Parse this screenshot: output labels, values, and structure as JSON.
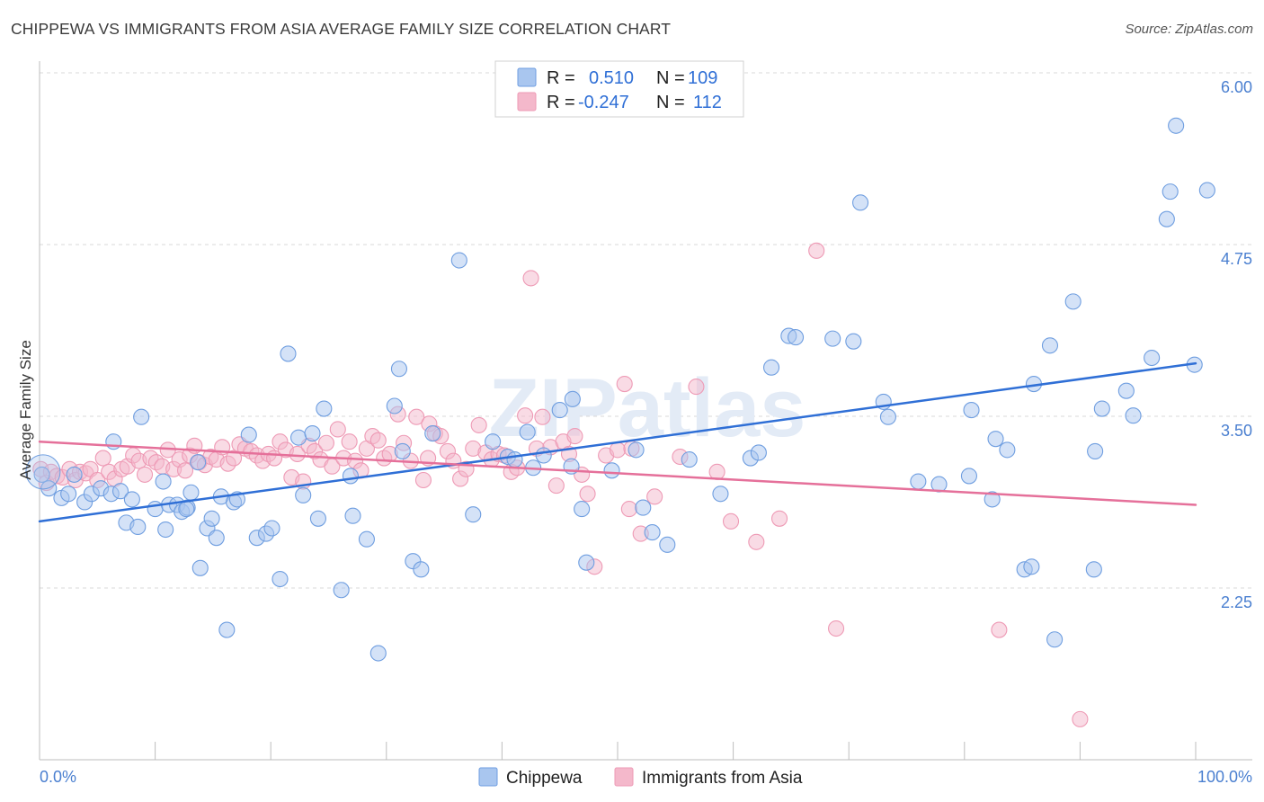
{
  "header": {
    "title": "CHIPPEWA VS IMMIGRANTS FROM ASIA AVERAGE FAMILY SIZE CORRELATION CHART",
    "source": "Source: ZipAtlas.com"
  },
  "watermark": "ZIPatlas",
  "legend_top": {
    "rows": [
      {
        "r_label": "R =",
        "r_value": "0.510",
        "n_label": "N =",
        "n_value": "109"
      },
      {
        "r_label": "R =",
        "r_value": "-0.247",
        "n_label": "N =",
        "n_value": "112"
      }
    ]
  },
  "legend_bottom": {
    "items": [
      "Chippewa",
      "Immigrants from Asia"
    ]
  },
  "colors": {
    "blue_fill": "#a9c6ef",
    "blue_stroke": "#6f9ee0",
    "blue_line": "#2f6fd6",
    "pink_fill": "#f4b8cb",
    "pink_stroke": "#ee9ab5",
    "pink_line": "#e5709a",
    "tick_text": "#4a7fd0",
    "grid": "#d8d8d8"
  },
  "chart_data": {
    "type": "scatter",
    "title": "CHIPPEWA VS IMMIGRANTS FROM ASIA AVERAGE FAMILY SIZE CORRELATION CHART",
    "xlabel": "",
    "ylabel": "Average Family Size",
    "xlim": [
      0,
      100
    ],
    "ylim": [
      1.0,
      6.15
    ],
    "x_tick_labels": [
      "0.0%",
      "100.0%"
    ],
    "y_ticks": [
      2.25,
      3.5,
      4.75,
      6.0
    ],
    "y_tick_labels": [
      "2.25",
      "3.50",
      "4.75",
      "6.00"
    ],
    "grid": "horizontal dashed",
    "series": [
      {
        "name": "Chippewa",
        "R": 0.51,
        "N": 109,
        "trend": {
          "x": [
            0,
            100
          ],
          "y": [
            2.84,
            3.99
          ]
        },
        "points": [
          [
            0.2,
            3.18
          ],
          [
            0.8,
            3.08
          ],
          [
            1.9,
            3.01
          ],
          [
            2.5,
            3.04
          ],
          [
            3.0,
            3.18
          ],
          [
            3.9,
            2.98
          ],
          [
            4.5,
            3.04
          ],
          [
            5.3,
            3.08
          ],
          [
            6.2,
            3.04
          ],
          [
            6.4,
            3.42
          ],
          [
            7.0,
            3.06
          ],
          [
            7.5,
            2.83
          ],
          [
            8.0,
            3.0
          ],
          [
            8.5,
            2.8
          ],
          [
            8.8,
            3.6
          ],
          [
            10.0,
            2.93
          ],
          [
            10.7,
            3.13
          ],
          [
            10.9,
            2.78
          ],
          [
            11.2,
            2.96
          ],
          [
            11.9,
            2.96
          ],
          [
            12.3,
            2.91
          ],
          [
            12.8,
            2.94
          ],
          [
            12.7,
            2.93
          ],
          [
            13.1,
            3.05
          ],
          [
            13.7,
            3.27
          ],
          [
            13.9,
            2.5
          ],
          [
            14.5,
            2.79
          ],
          [
            14.9,
            2.86
          ],
          [
            15.3,
            2.72
          ],
          [
            15.7,
            3.02
          ],
          [
            16.2,
            2.05
          ],
          [
            16.8,
            2.98
          ],
          [
            17.1,
            3.0
          ],
          [
            18.1,
            3.47
          ],
          [
            18.8,
            2.72
          ],
          [
            19.6,
            2.75
          ],
          [
            20.1,
            2.79
          ],
          [
            20.8,
            2.42
          ],
          [
            21.5,
            4.06
          ],
          [
            22.4,
            3.45
          ],
          [
            22.8,
            3.03
          ],
          [
            23.6,
            3.48
          ],
          [
            24.1,
            2.86
          ],
          [
            24.6,
            3.66
          ],
          [
            26.1,
            2.34
          ],
          [
            26.9,
            3.17
          ],
          [
            27.1,
            2.88
          ],
          [
            28.3,
            2.71
          ],
          [
            29.3,
            1.88
          ],
          [
            30.7,
            3.68
          ],
          [
            31.1,
            3.95
          ],
          [
            31.4,
            3.35
          ],
          [
            32.3,
            2.55
          ],
          [
            33.0,
            2.49
          ],
          [
            34.0,
            3.48
          ],
          [
            36.3,
            4.74
          ],
          [
            37.5,
            2.89
          ],
          [
            39.2,
            3.42
          ],
          [
            40.5,
            3.31
          ],
          [
            41.1,
            3.29
          ],
          [
            42.2,
            3.49
          ],
          [
            42.7,
            3.23
          ],
          [
            43.6,
            3.32
          ],
          [
            45.0,
            3.65
          ],
          [
            46.0,
            3.24
          ],
          [
            46.1,
            3.73
          ],
          [
            46.9,
            2.93
          ],
          [
            47.3,
            2.54
          ],
          [
            49.5,
            3.21
          ],
          [
            51.6,
            3.36
          ],
          [
            52.2,
            2.94
          ],
          [
            53.0,
            2.76
          ],
          [
            54.3,
            2.67
          ],
          [
            56.2,
            3.29
          ],
          [
            58.9,
            3.04
          ],
          [
            61.5,
            3.3
          ],
          [
            62.2,
            3.34
          ],
          [
            63.3,
            3.96
          ],
          [
            68.6,
            4.17
          ],
          [
            73.0,
            3.71
          ],
          [
            73.4,
            3.6
          ],
          [
            80.4,
            3.17
          ],
          [
            80.6,
            3.65
          ],
          [
            82.7,
            3.44
          ],
          [
            82.4,
            3.0
          ],
          [
            85.2,
            2.49
          ],
          [
            85.8,
            2.51
          ],
          [
            83.7,
            3.36
          ],
          [
            86.0,
            3.84
          ],
          [
            87.4,
            4.12
          ],
          [
            89.4,
            4.44
          ],
          [
            91.3,
            3.35
          ],
          [
            91.9,
            3.66
          ],
          [
            94.0,
            3.79
          ],
          [
            94.6,
            3.61
          ],
          [
            96.2,
            4.03
          ],
          [
            97.8,
            5.24
          ],
          [
            97.5,
            5.04
          ],
          [
            98.3,
            5.72
          ],
          [
            99.9,
            3.98
          ],
          [
            101.0,
            5.25
          ],
          [
            87.8,
            1.98
          ],
          [
            91.2,
            2.49
          ],
          [
            71.0,
            5.16
          ],
          [
            70.4,
            4.15
          ],
          [
            77.8,
            3.11
          ],
          [
            64.8,
            4.19
          ],
          [
            65.4,
            4.18
          ],
          [
            76.0,
            3.13
          ]
        ]
      },
      {
        "name": "Immigrants from Asia",
        "R": -0.247,
        "N": 112,
        "trend": {
          "x": [
            0,
            100
          ],
          "y": [
            3.42,
            2.96
          ]
        },
        "points": [
          [
            0.1,
            3.22
          ],
          [
            0.6,
            3.12
          ],
          [
            1.0,
            3.2
          ],
          [
            1.5,
            3.17
          ],
          [
            2.0,
            3.16
          ],
          [
            2.6,
            3.22
          ],
          [
            3.1,
            3.14
          ],
          [
            3.5,
            3.2
          ],
          [
            4.0,
            3.19
          ],
          [
            4.4,
            3.22
          ],
          [
            5.0,
            3.14
          ],
          [
            5.5,
            3.3
          ],
          [
            6.0,
            3.2
          ],
          [
            6.5,
            3.15
          ],
          [
            7.1,
            3.22
          ],
          [
            7.6,
            3.24
          ],
          [
            8.1,
            3.32
          ],
          [
            8.6,
            3.28
          ],
          [
            9.1,
            3.18
          ],
          [
            9.6,
            3.3
          ],
          [
            10.1,
            3.27
          ],
          [
            10.6,
            3.24
          ],
          [
            11.1,
            3.36
          ],
          [
            11.6,
            3.22
          ],
          [
            12.1,
            3.29
          ],
          [
            12.6,
            3.21
          ],
          [
            13.0,
            3.32
          ],
          [
            13.4,
            3.39
          ],
          [
            13.8,
            3.27
          ],
          [
            14.3,
            3.25
          ],
          [
            14.8,
            3.31
          ],
          [
            15.3,
            3.29
          ],
          [
            15.8,
            3.38
          ],
          [
            16.3,
            3.26
          ],
          [
            16.8,
            3.3
          ],
          [
            17.3,
            3.4
          ],
          [
            17.8,
            3.37
          ],
          [
            18.3,
            3.35
          ],
          [
            18.8,
            3.32
          ],
          [
            19.3,
            3.28
          ],
          [
            19.8,
            3.33
          ],
          [
            20.3,
            3.3
          ],
          [
            20.8,
            3.42
          ],
          [
            21.3,
            3.36
          ],
          [
            21.8,
            3.16
          ],
          [
            22.3,
            3.33
          ],
          [
            22.8,
            3.13
          ],
          [
            23.3,
            3.39
          ],
          [
            23.8,
            3.35
          ],
          [
            24.3,
            3.29
          ],
          [
            24.8,
            3.41
          ],
          [
            25.3,
            3.24
          ],
          [
            25.8,
            3.51
          ],
          [
            26.3,
            3.3
          ],
          [
            26.8,
            3.42
          ],
          [
            27.3,
            3.28
          ],
          [
            27.8,
            3.21
          ],
          [
            28.3,
            3.37
          ],
          [
            28.8,
            3.46
          ],
          [
            29.3,
            3.43
          ],
          [
            29.8,
            3.3
          ],
          [
            30.3,
            3.33
          ],
          [
            31.0,
            3.62
          ],
          [
            31.5,
            3.41
          ],
          [
            32.1,
            3.28
          ],
          [
            32.6,
            3.6
          ],
          [
            33.2,
            3.14
          ],
          [
            33.7,
            3.55
          ],
          [
            34.2,
            3.48
          ],
          [
            34.7,
            3.46
          ],
          [
            35.3,
            3.35
          ],
          [
            35.8,
            3.28
          ],
          [
            36.4,
            3.15
          ],
          [
            36.9,
            3.22
          ],
          [
            37.5,
            3.37
          ],
          [
            38.0,
            3.54
          ],
          [
            38.6,
            3.34
          ],
          [
            39.1,
            3.29
          ],
          [
            39.7,
            3.33
          ],
          [
            40.2,
            3.32
          ],
          [
            40.8,
            3.2
          ],
          [
            41.3,
            3.23
          ],
          [
            42.0,
            3.61
          ],
          [
            42.5,
            4.61
          ],
          [
            43.0,
            3.37
          ],
          [
            43.5,
            3.6
          ],
          [
            44.2,
            3.38
          ],
          [
            44.7,
            3.1
          ],
          [
            45.3,
            3.42
          ],
          [
            45.8,
            3.33
          ],
          [
            46.3,
            3.46
          ],
          [
            46.9,
            3.18
          ],
          [
            47.4,
            3.04
          ],
          [
            48.0,
            2.51
          ],
          [
            49.0,
            3.32
          ],
          [
            50.0,
            3.36
          ],
          [
            50.6,
            3.84
          ],
          [
            51.0,
            2.93
          ],
          [
            51.2,
            3.37
          ],
          [
            52.0,
            2.75
          ],
          [
            53.2,
            3.02
          ],
          [
            55.4,
            3.31
          ],
          [
            56.8,
            3.82
          ],
          [
            58.6,
            3.2
          ],
          [
            59.8,
            2.84
          ],
          [
            62.0,
            2.69
          ],
          [
            64.0,
            2.86
          ],
          [
            67.2,
            4.81
          ],
          [
            68.9,
            2.06
          ],
          [
            83.0,
            2.05
          ],
          [
            90.0,
            1.4
          ],
          [
            33.6,
            3.3
          ]
        ]
      }
    ]
  }
}
